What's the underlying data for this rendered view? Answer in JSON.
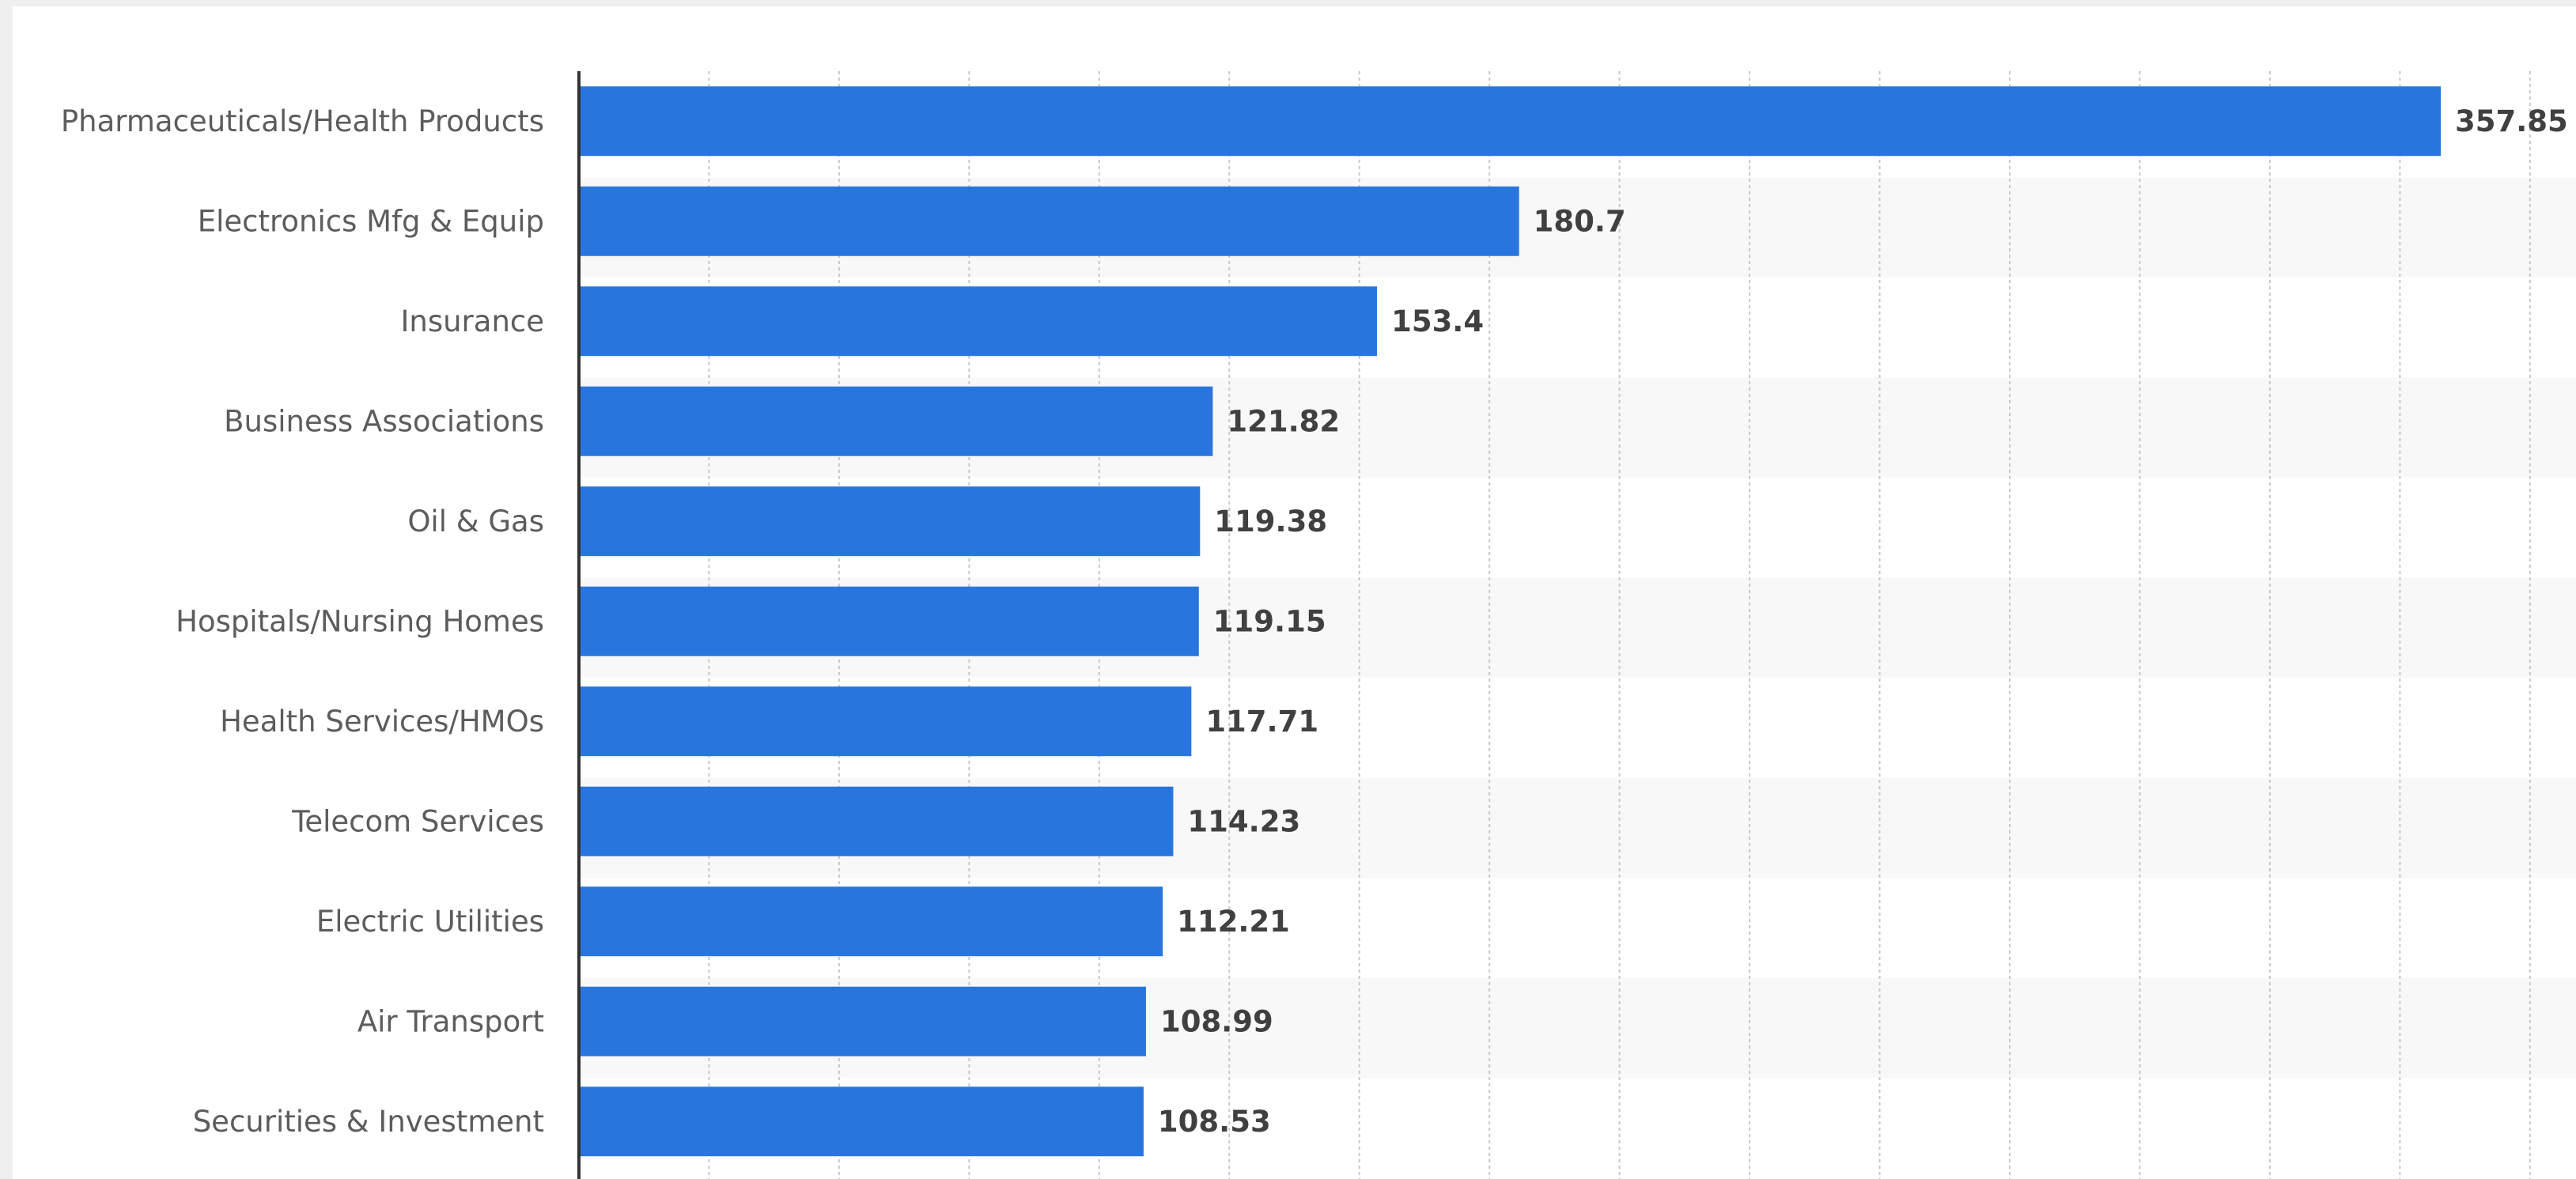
{
  "chart_data": {
    "type": "bar",
    "orientation": "horizontal",
    "categories": [
      "Pharmaceuticals/Health Products",
      "Electronics Mfg & Equip",
      "Insurance",
      "Business Associations",
      "Oil & Gas",
      "Hospitals/Nursing Homes",
      "Health Services/HMOs",
      "Telecom Services",
      "Electric Utilities",
      "Air Transport",
      "Securities & Investment"
    ],
    "values": [
      357.85,
      180.7,
      153.4,
      121.82,
      119.38,
      119.15,
      117.71,
      114.23,
      112.21,
      108.99,
      108.53
    ],
    "value_labels": [
      "357.85",
      "180.7",
      "153.4",
      "121.82",
      "119.38",
      "119.15",
      "117.71",
      "114.23",
      "112.21",
      "108.99",
      "108.53"
    ],
    "title": "",
    "xlabel": "",
    "ylabel": "",
    "xlim": [
      0,
      375
    ],
    "grid": true,
    "grid_step": 25,
    "legend": "none",
    "colors": {
      "bar": "#2876dd",
      "grid": "#c8c8c8",
      "axis": "#333333",
      "band": "#f8f8f8"
    }
  }
}
